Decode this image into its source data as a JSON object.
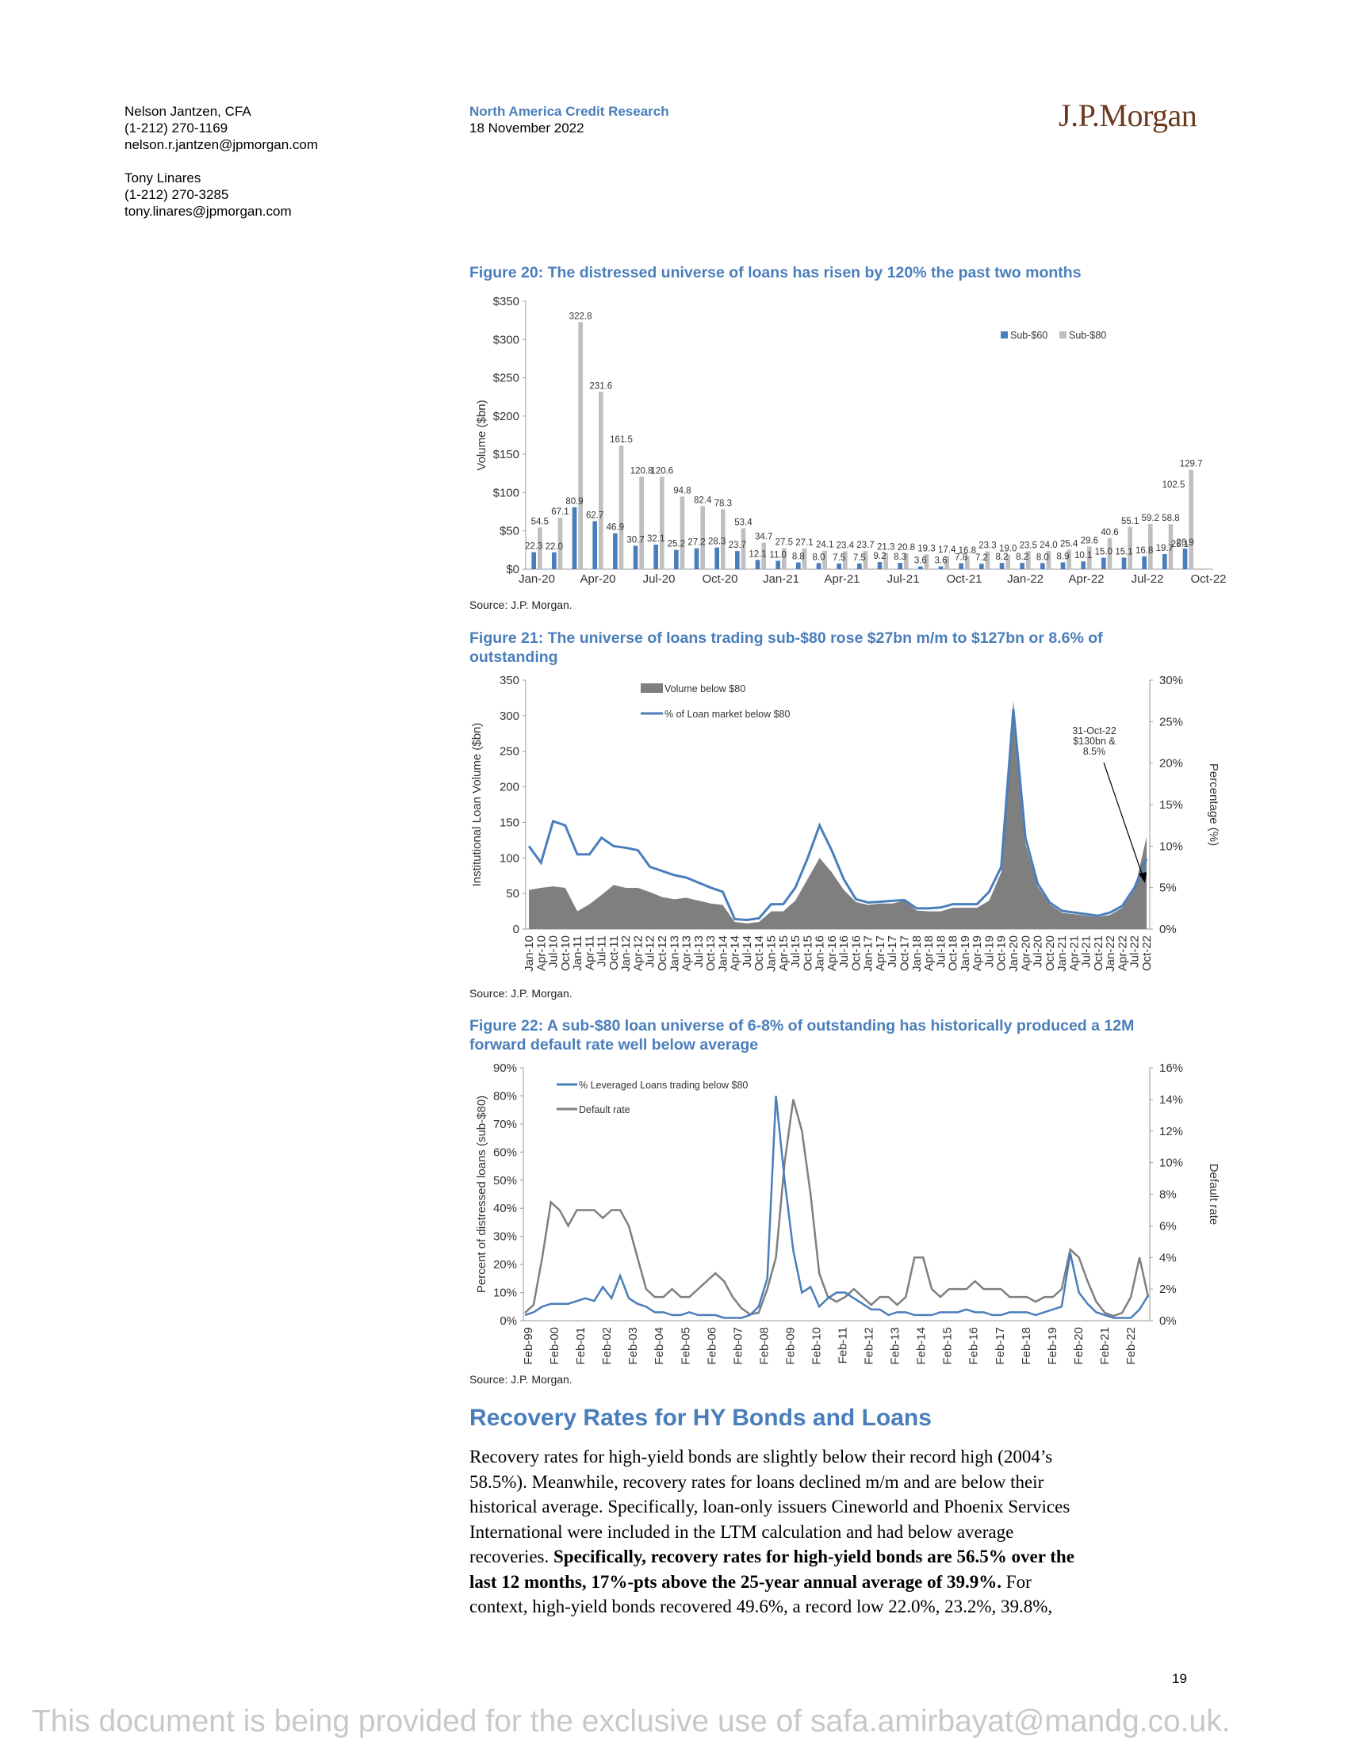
{
  "header": {
    "authors": [
      {
        "name": "Nelson Jantzen, CFA",
        "phone": "(1-212) 270-1169",
        "email": "nelson.r.jantzen@jpmorgan.com"
      },
      {
        "name": "Tony Linares",
        "phone": "(1-212) 270-3285",
        "email": "tony.linares@jpmorgan.com"
      }
    ],
    "department": "North America Credit Research",
    "date": "18 November 2022",
    "logo_text": "J.P.Morgan"
  },
  "figures": {
    "fig20": {
      "title": "Figure 20: The distressed universe of loans has risen by 120% the past two months",
      "source": "Source: J.P. Morgan."
    },
    "fig21": {
      "title": "Figure 21: The universe of loans trading sub-$80 rose $27bn m/m to $127bn or 8.6% of outstanding",
      "source": "Source: J.P. Morgan."
    },
    "fig22": {
      "title": "Figure 22: A sub-$80 loan universe of 6-8% of outstanding has historically produced a 12M forward default rate well below average",
      "source": "Source: J.P. Morgan."
    }
  },
  "chart_data": [
    {
      "type": "bar",
      "ylabel": "Volume ($bn)",
      "ylim": [
        0,
        350
      ],
      "yticks": [
        "$0",
        "$50",
        "$100",
        "$150",
        "$200",
        "$250",
        "$300",
        "$350"
      ],
      "xtick_labels": [
        "Jan-20",
        "Apr-20",
        "Jul-20",
        "Oct-20",
        "Jan-21",
        "Apr-21",
        "Jul-21",
        "Oct-21",
        "Jan-22",
        "Apr-22",
        "Jul-22",
        "Oct-22"
      ],
      "legend": "top-right",
      "series": [
        {
          "name": "Sub-$60",
          "color": "#4a7ebb",
          "values": [
            22.3,
            22.0,
            80.9,
            62.7,
            46.9,
            30.7,
            32.1,
            25.2,
            27.2,
            28.3,
            23.7,
            12.1,
            11.0,
            8.8,
            8.0,
            7.5,
            7.5,
            9.2,
            8.3,
            3.6,
            3.6,
            7.8,
            7.2,
            8.2,
            8.2,
            8.0,
            8.9,
            10.1,
            15.0,
            15.1,
            16.8,
            19.7,
            26.9
          ],
          "labels": [
            "22.3",
            "22.0",
            "80.9",
            "62.7",
            "46.9",
            "30.7",
            "32.1",
            "25.2",
            "27.2",
            "28.3",
            "23.7",
            "12.1",
            "11.0",
            "8.8",
            "8.0",
            "7.5",
            "7.5",
            "9.2",
            "8.3",
            "3.6",
            "3.6",
            "7.8",
            "7.2",
            "8.2",
            "8.2",
            "8.0",
            "8.9",
            "10.1",
            "15.0",
            "15.1",
            "16.8",
            "19.7",
            "26.9"
          ]
        },
        {
          "name": "Sub-$80",
          "color": "#bfbfbf",
          "values": [
            54.5,
            67.1,
            322.8,
            231.6,
            161.5,
            120.8,
            120.6,
            94.8,
            82.4,
            78.3,
            53.4,
            34.7,
            27.5,
            27.1,
            24.1,
            23.4,
            23.7,
            21.3,
            20.8,
            19.3,
            17.4,
            16.8,
            23.3,
            19.0,
            23.5,
            24.0,
            25.4,
            29.6,
            40.6,
            55.1,
            59.2,
            58.8,
            129.7
          ],
          "labels": [
            "54.5",
            "67.1",
            "322.8",
            "231.6",
            "161.5",
            "120.8",
            "120.6",
            "94.8",
            "82.4",
            "78.3",
            "53.4",
            "34.7",
            "27.5",
            "27.1",
            "24.1",
            "23.4",
            "23.7",
            "21.3",
            "20.8",
            "19.3",
            "17.4",
            "16.8",
            "23.3",
            "19.0",
            "23.5",
            "24.0",
            "25.4",
            "29.6",
            "40.6",
            "55.1",
            "59.2",
            "58.8",
            "129.7"
          ]
        }
      ],
      "extra_labels": [
        "25.1",
        "102.5"
      ]
    },
    {
      "type": "area",
      "ylabel": "Institutional Loan Volume ($bn)",
      "y2label": "Percentage (%)",
      "ylim": [
        0,
        350
      ],
      "y2lim": [
        0,
        30
      ],
      "yticks": [
        "0",
        "50",
        "100",
        "150",
        "200",
        "250",
        "300",
        "350"
      ],
      "y2ticks": [
        "0%",
        "5%",
        "10%",
        "15%",
        "20%",
        "25%",
        "30%"
      ],
      "xtick_labels": [
        "Jan-10",
        "Apr-10",
        "Jul-10",
        "Oct-10",
        "Jan-11",
        "Apr-11",
        "Jul-11",
        "Oct-11",
        "Jan-12",
        "Apr-12",
        "Jul-12",
        "Oct-12",
        "Jan-13",
        "Apr-13",
        "Jul-13",
        "Oct-13",
        "Jan-14",
        "Apr-14",
        "Jul-14",
        "Oct-14",
        "Jan-15",
        "Apr-15",
        "Jul-15",
        "Oct-15",
        "Jan-16",
        "Apr-16",
        "Jul-16",
        "Oct-16",
        "Jan-17",
        "Apr-17",
        "Jul-17",
        "Oct-17",
        "Jan-18",
        "Apr-18",
        "Jul-18",
        "Oct-18",
        "Jan-19",
        "Apr-19",
        "Jul-19",
        "Oct-19",
        "Jan-20",
        "Apr-20",
        "Jul-20",
        "Oct-20",
        "Jan-21",
        "Apr-21",
        "Jul-21",
        "Oct-21",
        "Jan-22",
        "Apr-22",
        "Jul-22",
        "Oct-22"
      ],
      "series": [
        {
          "name": "Volume below $80",
          "color": "#7f7f7f",
          "values": [
            55,
            58,
            60,
            58,
            25,
            35,
            48,
            62,
            58,
            58,
            52,
            45,
            42,
            44,
            40,
            36,
            34,
            10,
            8,
            10,
            25,
            25,
            40,
            70,
            100,
            80,
            55,
            38,
            34,
            36,
            36,
            40,
            26,
            25,
            25,
            30,
            30,
            30,
            40,
            80,
            322,
            120,
            60,
            35,
            23,
            21,
            19,
            17,
            20,
            30,
            55,
            130
          ]
        },
        {
          "name": "% of Loan market below $80",
          "color": "#4a7ebb",
          "axis": "right",
          "values": [
            10,
            8,
            13,
            12.5,
            9,
            9,
            11,
            10,
            9.8,
            9.5,
            7.5,
            7,
            6.5,
            6.2,
            5.6,
            5,
            4.5,
            1.2,
            1.1,
            1.3,
            3,
            3,
            5,
            8.5,
            12.5,
            9.5,
            6,
            3.6,
            3.2,
            3.3,
            3.4,
            3.5,
            2.5,
            2.5,
            2.6,
            3,
            3,
            3,
            4.5,
            7.5,
            26.5,
            11,
            5.5,
            3.2,
            2.2,
            2,
            1.8,
            1.6,
            2,
            2.8,
            5,
            8.5
          ]
        }
      ],
      "annotation": {
        "lines": [
          "31-Oct-22",
          "$130bn &",
          "8.5%"
        ]
      }
    },
    {
      "type": "line",
      "ylabel": "Percent of distressed loans (sub-$80)",
      "y2label": "Default rate",
      "ylim": [
        0,
        90
      ],
      "y2lim": [
        0,
        16
      ],
      "yticks": [
        "0%",
        "10%",
        "20%",
        "30%",
        "40%",
        "50%",
        "60%",
        "70%",
        "80%",
        "90%"
      ],
      "y2ticks": [
        "0%",
        "2%",
        "4%",
        "6%",
        "8%",
        "10%",
        "12%",
        "14%",
        "16%"
      ],
      "xtick_labels": [
        "Feb-99",
        "Feb-00",
        "Feb-01",
        "Feb-02",
        "Feb-03",
        "Feb-04",
        "Feb-05",
        "Feb-06",
        "Feb-07",
        "Feb-08",
        "Feb-09",
        "Feb-10",
        "Feb-11",
        "Feb-12",
        "Feb-13",
        "Feb-14",
        "Feb-15",
        "Feb-16",
        "Feb-17",
        "Feb-18",
        "Feb-19",
        "Feb-20",
        "Feb-21",
        "Feb-22"
      ],
      "series": [
        {
          "name": "% Leveraged Loans trading below $80",
          "color": "#4a7ebb",
          "values": [
            2,
            3,
            5,
            6,
            6,
            6,
            7,
            8,
            7,
            12,
            8,
            16,
            8,
            6,
            5,
            3,
            3,
            2,
            2,
            3,
            2,
            2,
            2,
            1,
            1,
            1,
            2,
            5,
            15,
            80,
            50,
            25,
            10,
            12,
            5,
            8,
            10,
            10,
            8,
            6,
            4,
            4,
            2,
            3,
            3,
            2,
            2,
            2,
            3,
            3,
            3,
            4,
            3,
            3,
            2,
            2,
            3,
            3,
            3,
            2,
            3,
            4,
            5,
            24,
            10,
            6,
            3,
            2,
            1,
            1,
            1,
            4,
            9
          ]
        },
        {
          "name": "Default rate",
          "color": "#7f7f7f",
          "axis": "right",
          "values": [
            0.5,
            1,
            4,
            7.5,
            7,
            6,
            7,
            7,
            7,
            6.5,
            7,
            7,
            6,
            4,
            2,
            1.5,
            1.5,
            2,
            1.5,
            1.5,
            2,
            2.5,
            3,
            2.5,
            1.5,
            0.8,
            0.4,
            0.5,
            2,
            4,
            10,
            14,
            12,
            8,
            3,
            1.5,
            1.2,
            1.5,
            2,
            1.5,
            1,
            1.5,
            1.5,
            1,
            1.5,
            4,
            4,
            2,
            1.5,
            2,
            2,
            2,
            2.5,
            2,
            2,
            2,
            1.5,
            1.5,
            1.5,
            1.2,
            1.5,
            1.5,
            2,
            4.5,
            4,
            2.5,
            1.2,
            0.5,
            0.3,
            0.5,
            1.5,
            4,
            1.5
          ]
        }
      ]
    }
  ],
  "section": {
    "title": "Recovery Rates for HY Bonds and Loans",
    "lines": [
      {
        "text": "Recovery rates for high-yield bonds are slightly below their record high (2004’s",
        "bold": false
      },
      {
        "text": "58.5%). Meanwhile, recovery rates for loans declined m/m and are below their",
        "bold": false
      },
      {
        "text": "historical average. Specifically, loan-only issuers Cineworld and Phoenix Services",
        "bold": false
      },
      {
        "text": "International were included in the LTM calculation and had below average",
        "bold": false
      },
      {
        "text": "recoveries.",
        "bold": false,
        "tail_bold": " Specifically, recovery rates for high-yield bonds are 56.5% over the"
      },
      {
        "text": "last 12 months, 17%-pts above the 25-year annual average of 39.9%.",
        "bold": true,
        "tail": " For"
      },
      {
        "text": "context, high-yield bonds recovered 49.6%, a record low 22.0%, 23.2%, 39.8%,",
        "bold": false
      }
    ]
  },
  "page_number": "19",
  "footer": "This document is being provided for the exclusive use of safa.amirbayat@mandg.co.uk."
}
